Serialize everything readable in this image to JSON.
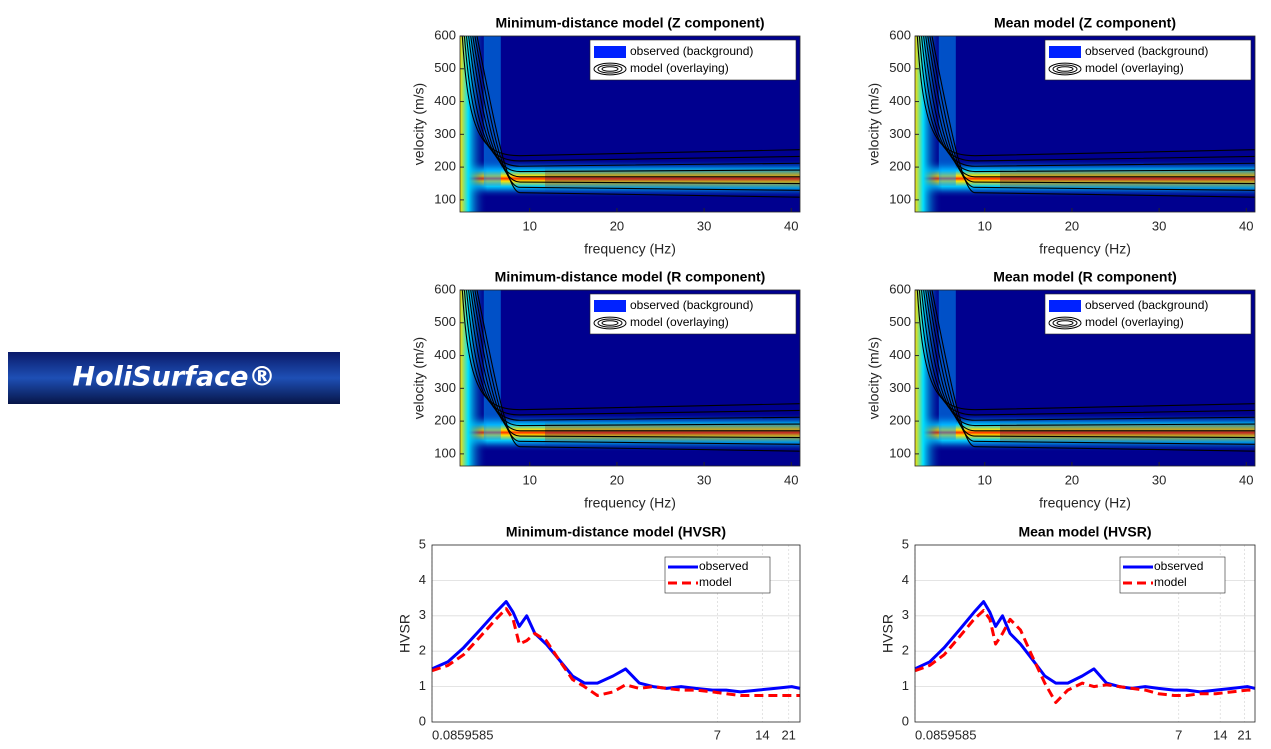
{
  "logo": {
    "text": "HoliSurface®"
  },
  "chart_data": [
    {
      "type": "heatmap",
      "title": "Minimum-distance model (Z component)",
      "xlabel": "frequency (Hz)",
      "ylabel": "velocity (m/s)",
      "xlim": [
        2,
        41
      ],
      "ylim": [
        63,
        600
      ],
      "xticks": [
        10,
        20,
        30,
        40
      ],
      "yticks": [
        100,
        200,
        300,
        400,
        500,
        600
      ],
      "legend": [
        "observed (background)",
        "model (overlaying)"
      ]
    },
    {
      "type": "heatmap",
      "title": "Mean model (Z component)",
      "xlabel": "frequency (Hz)",
      "ylabel": "velocity (m/s)",
      "xlim": [
        2,
        41
      ],
      "ylim": [
        63,
        600
      ],
      "xticks": [
        10,
        20,
        30,
        40
      ],
      "yticks": [
        100,
        200,
        300,
        400,
        500,
        600
      ],
      "legend": [
        "observed (background)",
        "model (overlaying)"
      ]
    },
    {
      "type": "heatmap",
      "title": "Minimum-distance model (R component)",
      "xlabel": "frequency (Hz)",
      "ylabel": "velocity (m/s)",
      "xlim": [
        2,
        41
      ],
      "ylim": [
        63,
        600
      ],
      "xticks": [
        10,
        20,
        30,
        40
      ],
      "yticks": [
        100,
        200,
        300,
        400,
        500,
        600
      ],
      "legend": [
        "observed (background)",
        "model (overlaying)"
      ]
    },
    {
      "type": "heatmap",
      "title": "Mean model (R component)",
      "xlabel": "frequency (Hz)",
      "ylabel": "velocity (m/s)",
      "xlim": [
        2,
        41
      ],
      "ylim": [
        63,
        600
      ],
      "xticks": [
        10,
        20,
        30,
        40
      ],
      "yticks": [
        100,
        200,
        300,
        400,
        500,
        600
      ],
      "legend": [
        "observed (background)",
        "model (overlaying)"
      ]
    },
    {
      "type": "line",
      "title": "Minimum-distance model (HVSR)",
      "ylabel": "HVSR",
      "xscale": "log",
      "grid": true,
      "xlim": [
        0.0859585,
        25
      ],
      "ylim": [
        0,
        5
      ],
      "xticks": [
        0.0859585,
        7,
        14,
        21
      ],
      "yticks": [
        0,
        1,
        2,
        3,
        4,
        5
      ],
      "x": [
        0.086,
        0.11,
        0.14,
        0.18,
        0.23,
        0.27,
        0.3,
        0.33,
        0.37,
        0.42,
        0.5,
        0.6,
        0.75,
        0.9,
        1.1,
        1.4,
        1.7,
        2.1,
        2.6,
        3.2,
        4,
        5,
        6.5,
        8,
        10,
        13,
        17,
        22,
        25
      ],
      "series": [
        {
          "name": "observed",
          "color": "#0000ff",
          "values": [
            1.5,
            1.7,
            2.1,
            2.6,
            3.1,
            3.4,
            3.1,
            2.7,
            3.0,
            2.5,
            2.2,
            1.8,
            1.3,
            1.1,
            1.1,
            1.3,
            1.5,
            1.1,
            1.0,
            0.95,
            1.0,
            0.95,
            0.9,
            0.9,
            0.85,
            0.9,
            0.95,
            1.0,
            0.95
          ]
        },
        {
          "name": "model",
          "color": "#ff0000",
          "values": [
            1.45,
            1.6,
            1.9,
            2.4,
            2.9,
            3.2,
            2.9,
            2.2,
            2.3,
            2.5,
            2.3,
            1.8,
            1.2,
            1.0,
            0.75,
            0.85,
            1.05,
            0.95,
            1.0,
            0.95,
            0.9,
            0.9,
            0.85,
            0.8,
            0.75,
            0.75,
            0.75,
            0.75,
            0.75
          ]
        }
      ]
    },
    {
      "type": "line",
      "title": "Mean model (HVSR)",
      "ylabel": "HVSR",
      "xscale": "log",
      "grid": true,
      "xlim": [
        0.0859585,
        25
      ],
      "ylim": [
        0,
        5
      ],
      "xticks": [
        0.0859585,
        7,
        14,
        21
      ],
      "yticks": [
        0,
        1,
        2,
        3,
        4,
        5
      ],
      "x": [
        0.086,
        0.11,
        0.14,
        0.18,
        0.23,
        0.27,
        0.3,
        0.33,
        0.37,
        0.42,
        0.5,
        0.6,
        0.75,
        0.9,
        1.1,
        1.4,
        1.7,
        2.1,
        2.6,
        3.2,
        4,
        5,
        6.5,
        8,
        10,
        13,
        17,
        22,
        25
      ],
      "series": [
        {
          "name": "observed",
          "color": "#0000ff",
          "values": [
            1.5,
            1.7,
            2.1,
            2.6,
            3.1,
            3.4,
            3.1,
            2.7,
            3.0,
            2.5,
            2.2,
            1.8,
            1.3,
            1.1,
            1.1,
            1.3,
            1.5,
            1.1,
            1.0,
            0.95,
            1.0,
            0.95,
            0.9,
            0.9,
            0.85,
            0.9,
            0.95,
            1.0,
            0.95
          ]
        },
        {
          "name": "model",
          "color": "#ff0000",
          "values": [
            1.45,
            1.6,
            1.9,
            2.4,
            2.9,
            3.15,
            2.9,
            2.2,
            2.5,
            2.9,
            2.6,
            1.9,
            1.1,
            0.55,
            0.9,
            1.1,
            1.0,
            1.05,
            1.0,
            0.95,
            0.9,
            0.8,
            0.75,
            0.75,
            0.8,
            0.8,
            0.85,
            0.9,
            0.9
          ]
        }
      ]
    }
  ]
}
